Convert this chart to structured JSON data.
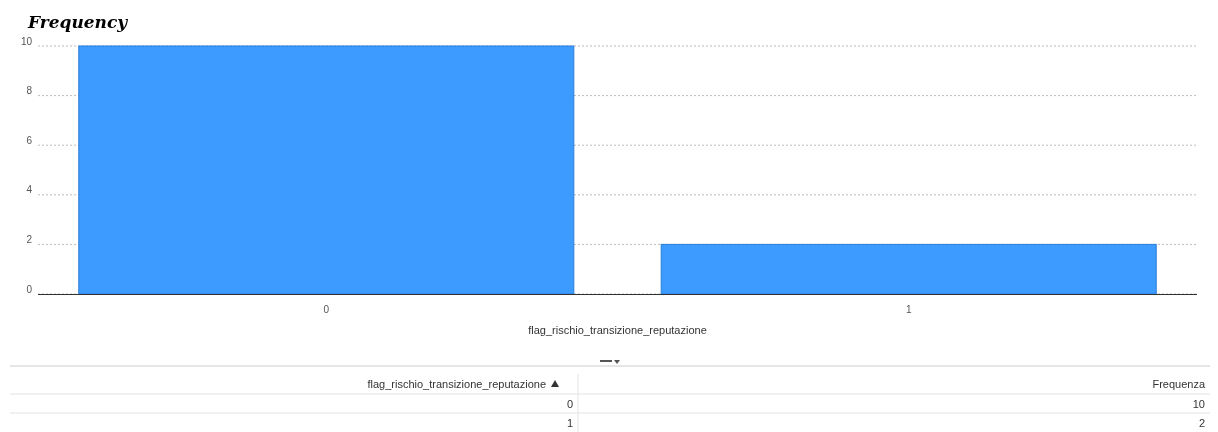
{
  "chart_data": {
    "type": "bar",
    "title": "Frequency",
    "xlabel": "flag_rischio_transizione_reputazione",
    "categories": [
      "0",
      "1"
    ],
    "values": [
      10,
      2
    ],
    "color": "#3d9bff",
    "ylim": [
      0,
      10
    ],
    "yticks": [
      0,
      2,
      4,
      6,
      8,
      10
    ],
    "grid": "y",
    "annotations": [
      "Frequenza",
      "10",
      "2"
    ]
  }
}
